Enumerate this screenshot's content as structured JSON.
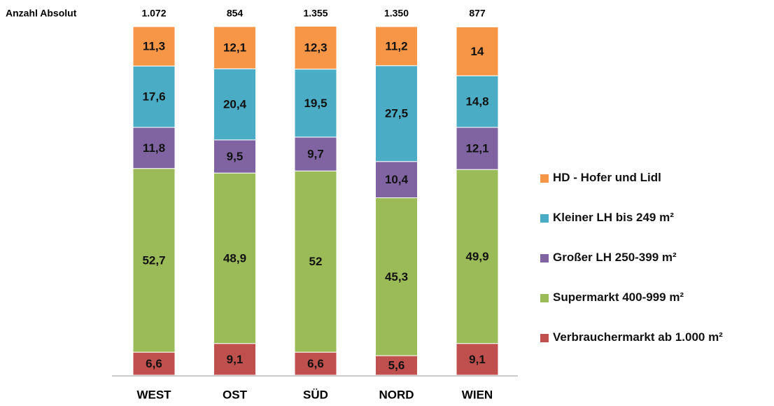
{
  "chart_data": {
    "type": "stacked_bar",
    "categories": [
      "WEST",
      "OST",
      "SÜD",
      "NORD",
      "WIEN"
    ],
    "ylim": [
      0,
      100
    ],
    "annotation": {
      "label": "Anzahl Absolut",
      "values": [
        1072,
        854,
        1355,
        1350,
        877
      ],
      "value_labels": [
        "1.072",
        "854",
        "1.355",
        "1.350",
        "877"
      ]
    },
    "series": [
      {
        "name": "Verbrauchermarkt ab 1.000 m²",
        "color": "#c0504d",
        "values": [
          6.6,
          9.1,
          6.6,
          5.6,
          9.1
        ],
        "value_labels": [
          "6,6",
          "9,1",
          "6,6",
          "5,6",
          "9,1"
        ]
      },
      {
        "name": "Supermarkt 400-999 m²",
        "color": "#9bbb59",
        "values": [
          52.7,
          48.9,
          52,
          45.3,
          49.9
        ],
        "value_labels": [
          "52,7",
          "48,9",
          "52",
          "45,3",
          "49,9"
        ]
      },
      {
        "name": "Großer LH 250-399 m²",
        "color": "#8064a2",
        "values": [
          11.8,
          9.5,
          9.7,
          10.4,
          12.1
        ],
        "value_labels": [
          "11,8",
          "9,5",
          "9,7",
          "10,4",
          "12,1"
        ]
      },
      {
        "name": "Kleiner LH bis 249 m²",
        "color": "#4bacc6",
        "values": [
          17.6,
          20.4,
          19.5,
          27.5,
          14.8
        ],
        "value_labels": [
          "17,6",
          "20,4",
          "19,5",
          "27,5",
          "14,8"
        ]
      },
      {
        "name": "HD - Hofer und Lidl",
        "color": "#f79646",
        "values": [
          11.3,
          12.1,
          12.3,
          11.2,
          14
        ],
        "value_labels": [
          "11,3",
          "12,1",
          "12,3",
          "11,2",
          "14"
        ]
      }
    ],
    "legend": "right"
  }
}
